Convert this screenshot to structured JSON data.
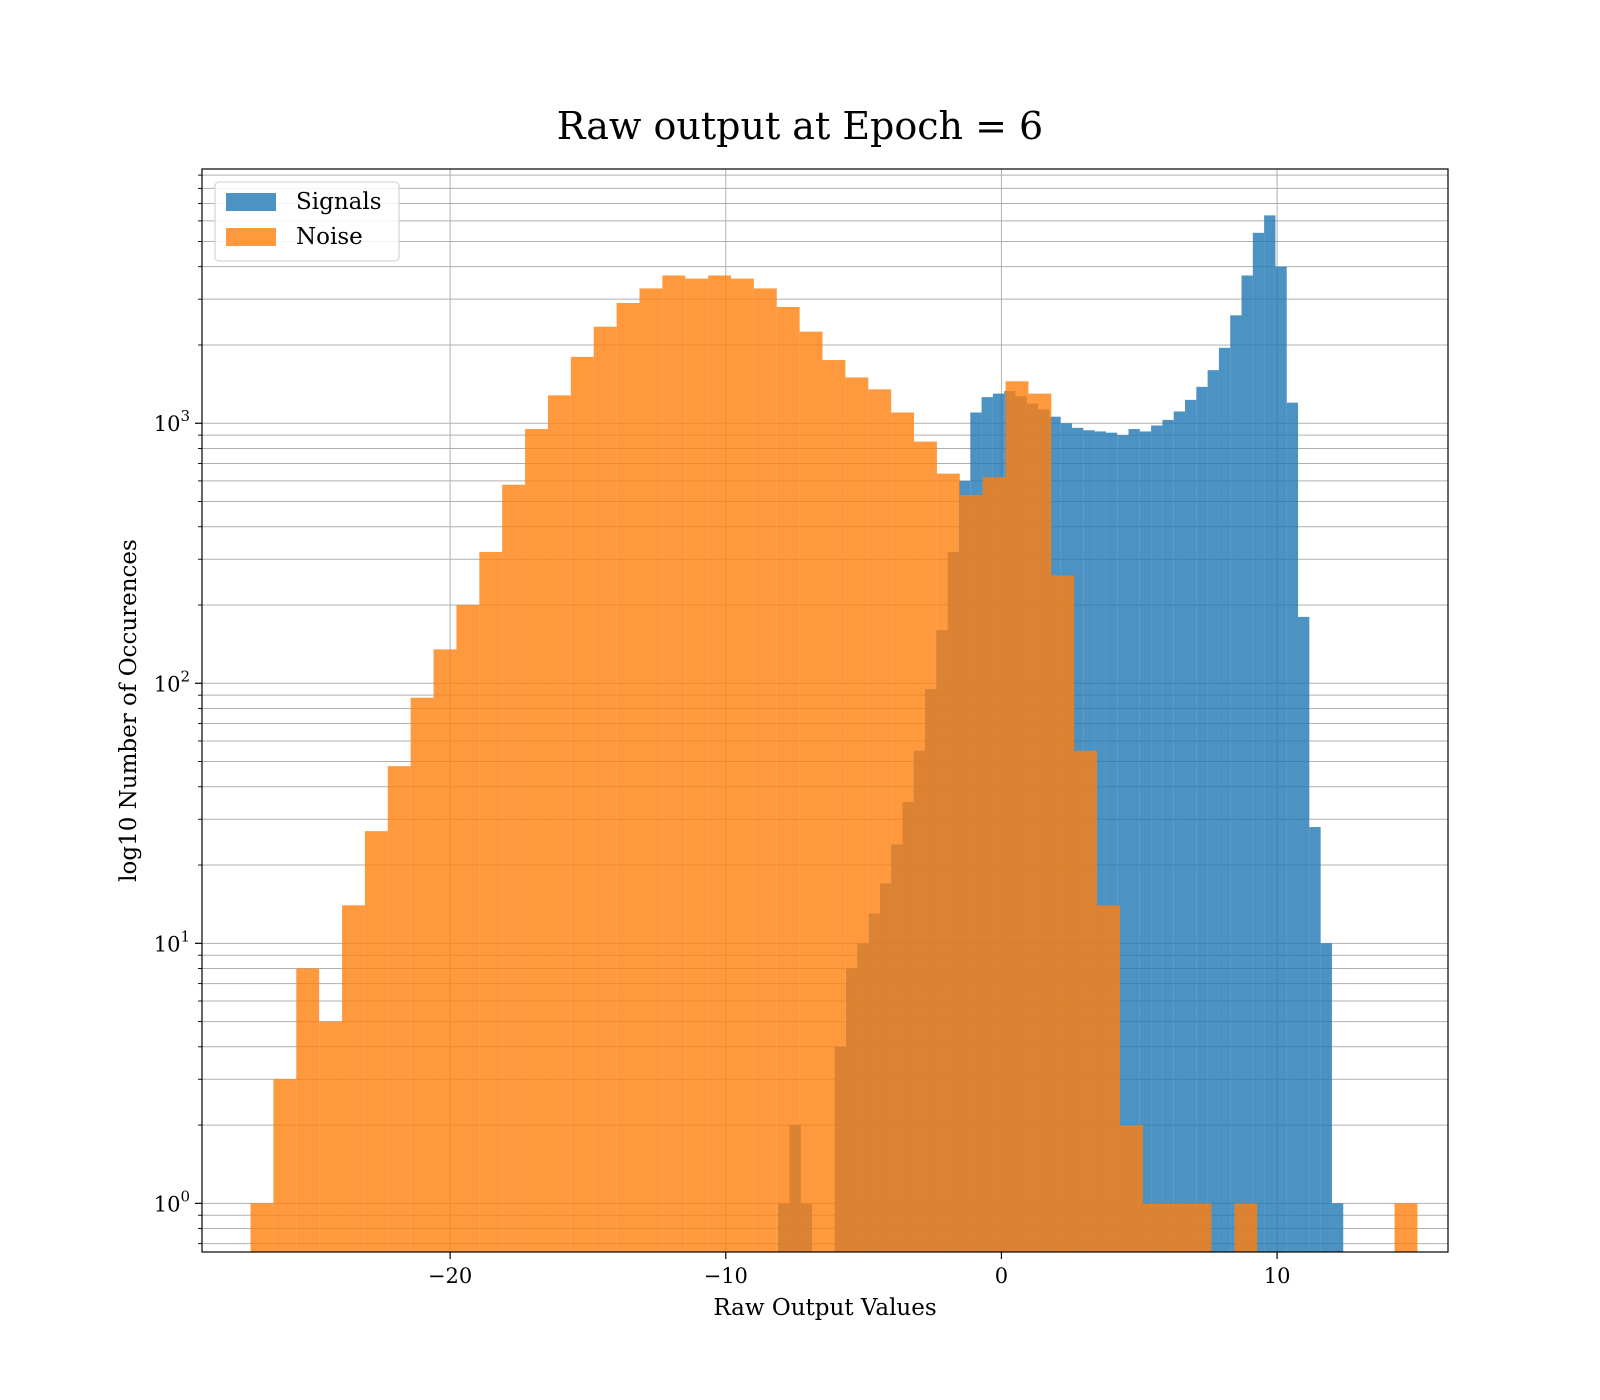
{
  "chart_data": {
    "type": "bar",
    "title": "Raw output at Epoch = 6",
    "xlabel": "Raw Output Values",
    "ylabel": "log10 Number of Occurences",
    "y_scale": "log",
    "xlim": [
      -29,
      16.2
    ],
    "ylim": [
      0.65,
      9500
    ],
    "x_ticks": [
      -20,
      -10,
      0,
      10
    ],
    "x_tick_labels": [
      "−20",
      "−10",
      "0",
      "10"
    ],
    "y_ticks": [
      1,
      10,
      100,
      1000
    ],
    "y_tick_labels": [
      {
        "base": "10",
        "exp": "0"
      },
      {
        "base": "10",
        "exp": "1"
      },
      {
        "base": "10",
        "exp": "2"
      },
      {
        "base": "10",
        "exp": "3"
      }
    ],
    "grid": true,
    "legend_placement": "upper-left",
    "series": [
      {
        "name": "Signals",
        "color": "#1f77b4",
        "bin_width": 0.41,
        "bins": [
          [
            -8.1,
            1
          ],
          [
            -7.69,
            2
          ],
          [
            -7.28,
            1
          ],
          [
            -6.05,
            4
          ],
          [
            -5.64,
            8
          ],
          [
            -5.23,
            10
          ],
          [
            -4.82,
            13
          ],
          [
            -4.41,
            17
          ],
          [
            -4.0,
            24
          ],
          [
            -3.59,
            35
          ],
          [
            -3.18,
            55
          ],
          [
            -2.77,
            95
          ],
          [
            -2.36,
            160
          ],
          [
            -1.95,
            320
          ],
          [
            -1.54,
            600
          ],
          [
            -1.13,
            1100
          ],
          [
            -0.72,
            1260
          ],
          [
            -0.31,
            1300
          ],
          [
            0.1,
            1330
          ],
          [
            0.51,
            1270
          ],
          [
            0.92,
            1190
          ],
          [
            1.33,
            1130
          ],
          [
            1.74,
            1060
          ],
          [
            2.15,
            1000
          ],
          [
            2.56,
            960
          ],
          [
            2.97,
            940
          ],
          [
            3.38,
            930
          ],
          [
            3.79,
            920
          ],
          [
            4.2,
            900
          ],
          [
            4.61,
            950
          ],
          [
            5.02,
            930
          ],
          [
            5.43,
            980
          ],
          [
            5.84,
            1030
          ],
          [
            6.25,
            1110
          ],
          [
            6.66,
            1230
          ],
          [
            7.07,
            1380
          ],
          [
            7.48,
            1600
          ],
          [
            7.89,
            1950
          ],
          [
            8.3,
            2600
          ],
          [
            8.71,
            3700
          ],
          [
            9.12,
            5400
          ],
          [
            9.53,
            6300
          ],
          [
            9.94,
            4000
          ],
          [
            10.35,
            1200
          ],
          [
            10.76,
            180
          ],
          [
            11.17,
            28
          ],
          [
            11.58,
            10
          ],
          [
            11.99,
            1
          ]
        ]
      },
      {
        "name": "Noise",
        "color": "#ff7f0e",
        "bin_width": 0.83,
        "bins": [
          [
            -27.24,
            1
          ],
          [
            -26.41,
            3
          ],
          [
            -25.58,
            8
          ],
          [
            -24.75,
            5
          ],
          [
            -23.92,
            14
          ],
          [
            -23.09,
            27
          ],
          [
            -22.26,
            48
          ],
          [
            -21.43,
            88
          ],
          [
            -20.6,
            135
          ],
          [
            -19.77,
            200
          ],
          [
            -18.94,
            320
          ],
          [
            -18.11,
            580
          ],
          [
            -17.28,
            950
          ],
          [
            -16.45,
            1280
          ],
          [
            -15.62,
            1800
          ],
          [
            -14.79,
            2350
          ],
          [
            -13.96,
            2900
          ],
          [
            -13.13,
            3300
          ],
          [
            -12.3,
            3700
          ],
          [
            -11.47,
            3600
          ],
          [
            -10.64,
            3700
          ],
          [
            -9.81,
            3600
          ],
          [
            -8.98,
            3300
          ],
          [
            -8.15,
            2800
          ],
          [
            -7.32,
            2250
          ],
          [
            -6.49,
            1750
          ],
          [
            -5.66,
            1500
          ],
          [
            -4.83,
            1350
          ],
          [
            -4.0,
            1100
          ],
          [
            -3.17,
            850
          ],
          [
            -2.34,
            640
          ],
          [
            -1.51,
            530
          ],
          [
            -0.68,
            620
          ],
          [
            0.15,
            1450
          ],
          [
            0.98,
            1300
          ],
          [
            1.81,
            260
          ],
          [
            2.64,
            55
          ],
          [
            3.47,
            14
          ],
          [
            4.3,
            2
          ],
          [
            5.13,
            1
          ],
          [
            5.96,
            1
          ],
          [
            6.79,
            1
          ],
          [
            8.45,
            1
          ],
          [
            14.26,
            1
          ]
        ]
      }
    ]
  }
}
